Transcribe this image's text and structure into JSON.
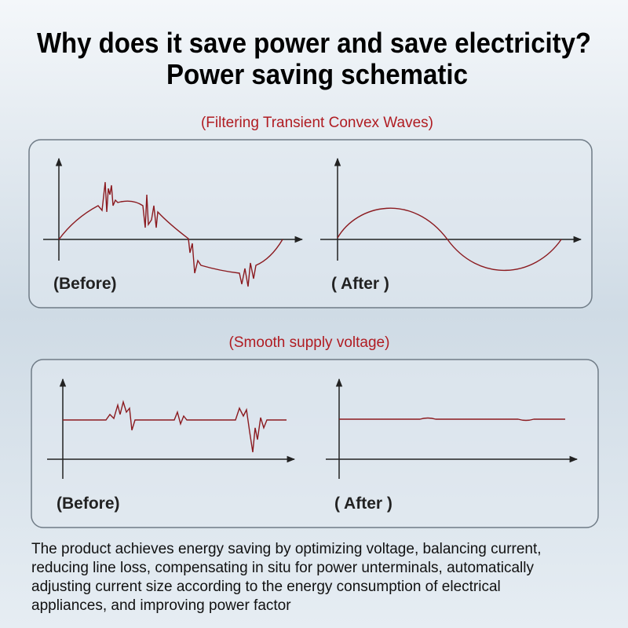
{
  "header": {
    "title_lines": [
      "Why does it save power and save electricity?",
      "Power saving schematic"
    ]
  },
  "sections": [
    {
      "caption": "(Filtering Transient Convex Waves)",
      "before_label": "(Before)",
      "after_label": "( After )"
    },
    {
      "caption": "(Smooth supply voltage)",
      "before_label": "(Before)",
      "after_label": "( After )"
    }
  ],
  "description": {
    "lines": [
      "The product achieves energy saving by optimizing voltage, balancing current,",
      "reducing line loss, compensating in situ for power unterminals, automatically",
      "adjusting current size according to the energy consumption of electrical",
      "appliances, and improving power factor"
    ]
  }
}
